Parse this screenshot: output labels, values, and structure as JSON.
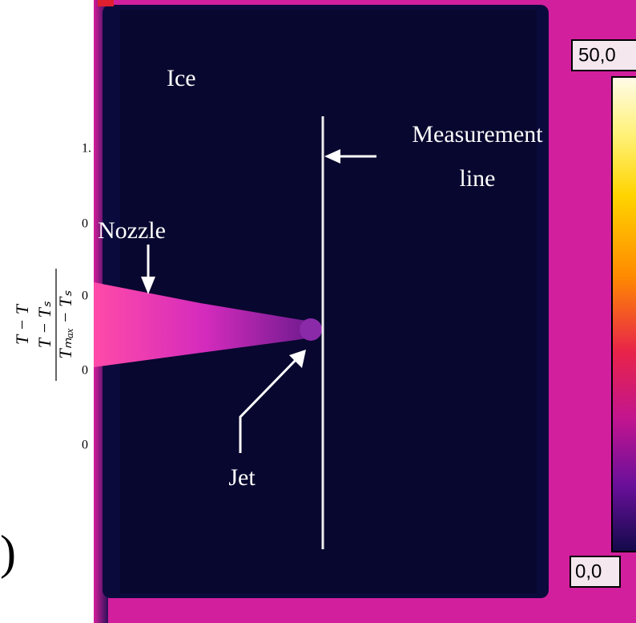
{
  "figure": {
    "annotations": {
      "ice": "Ice",
      "measurement": [
        "Measurement",
        "line"
      ],
      "nozzle": "Nozzle",
      "jet": "Jet"
    },
    "colorbar": {
      "max_label": "50,0",
      "min_label": "0,0"
    },
    "background": {
      "ticks": [
        "1.",
        "0",
        "0",
        "0",
        "0"
      ],
      "ylabel": [
        "T − T",
        "T − Tₛ",
        "Tₘₐₓ − Tₛ"
      ],
      "paren": ")"
    }
  }
}
